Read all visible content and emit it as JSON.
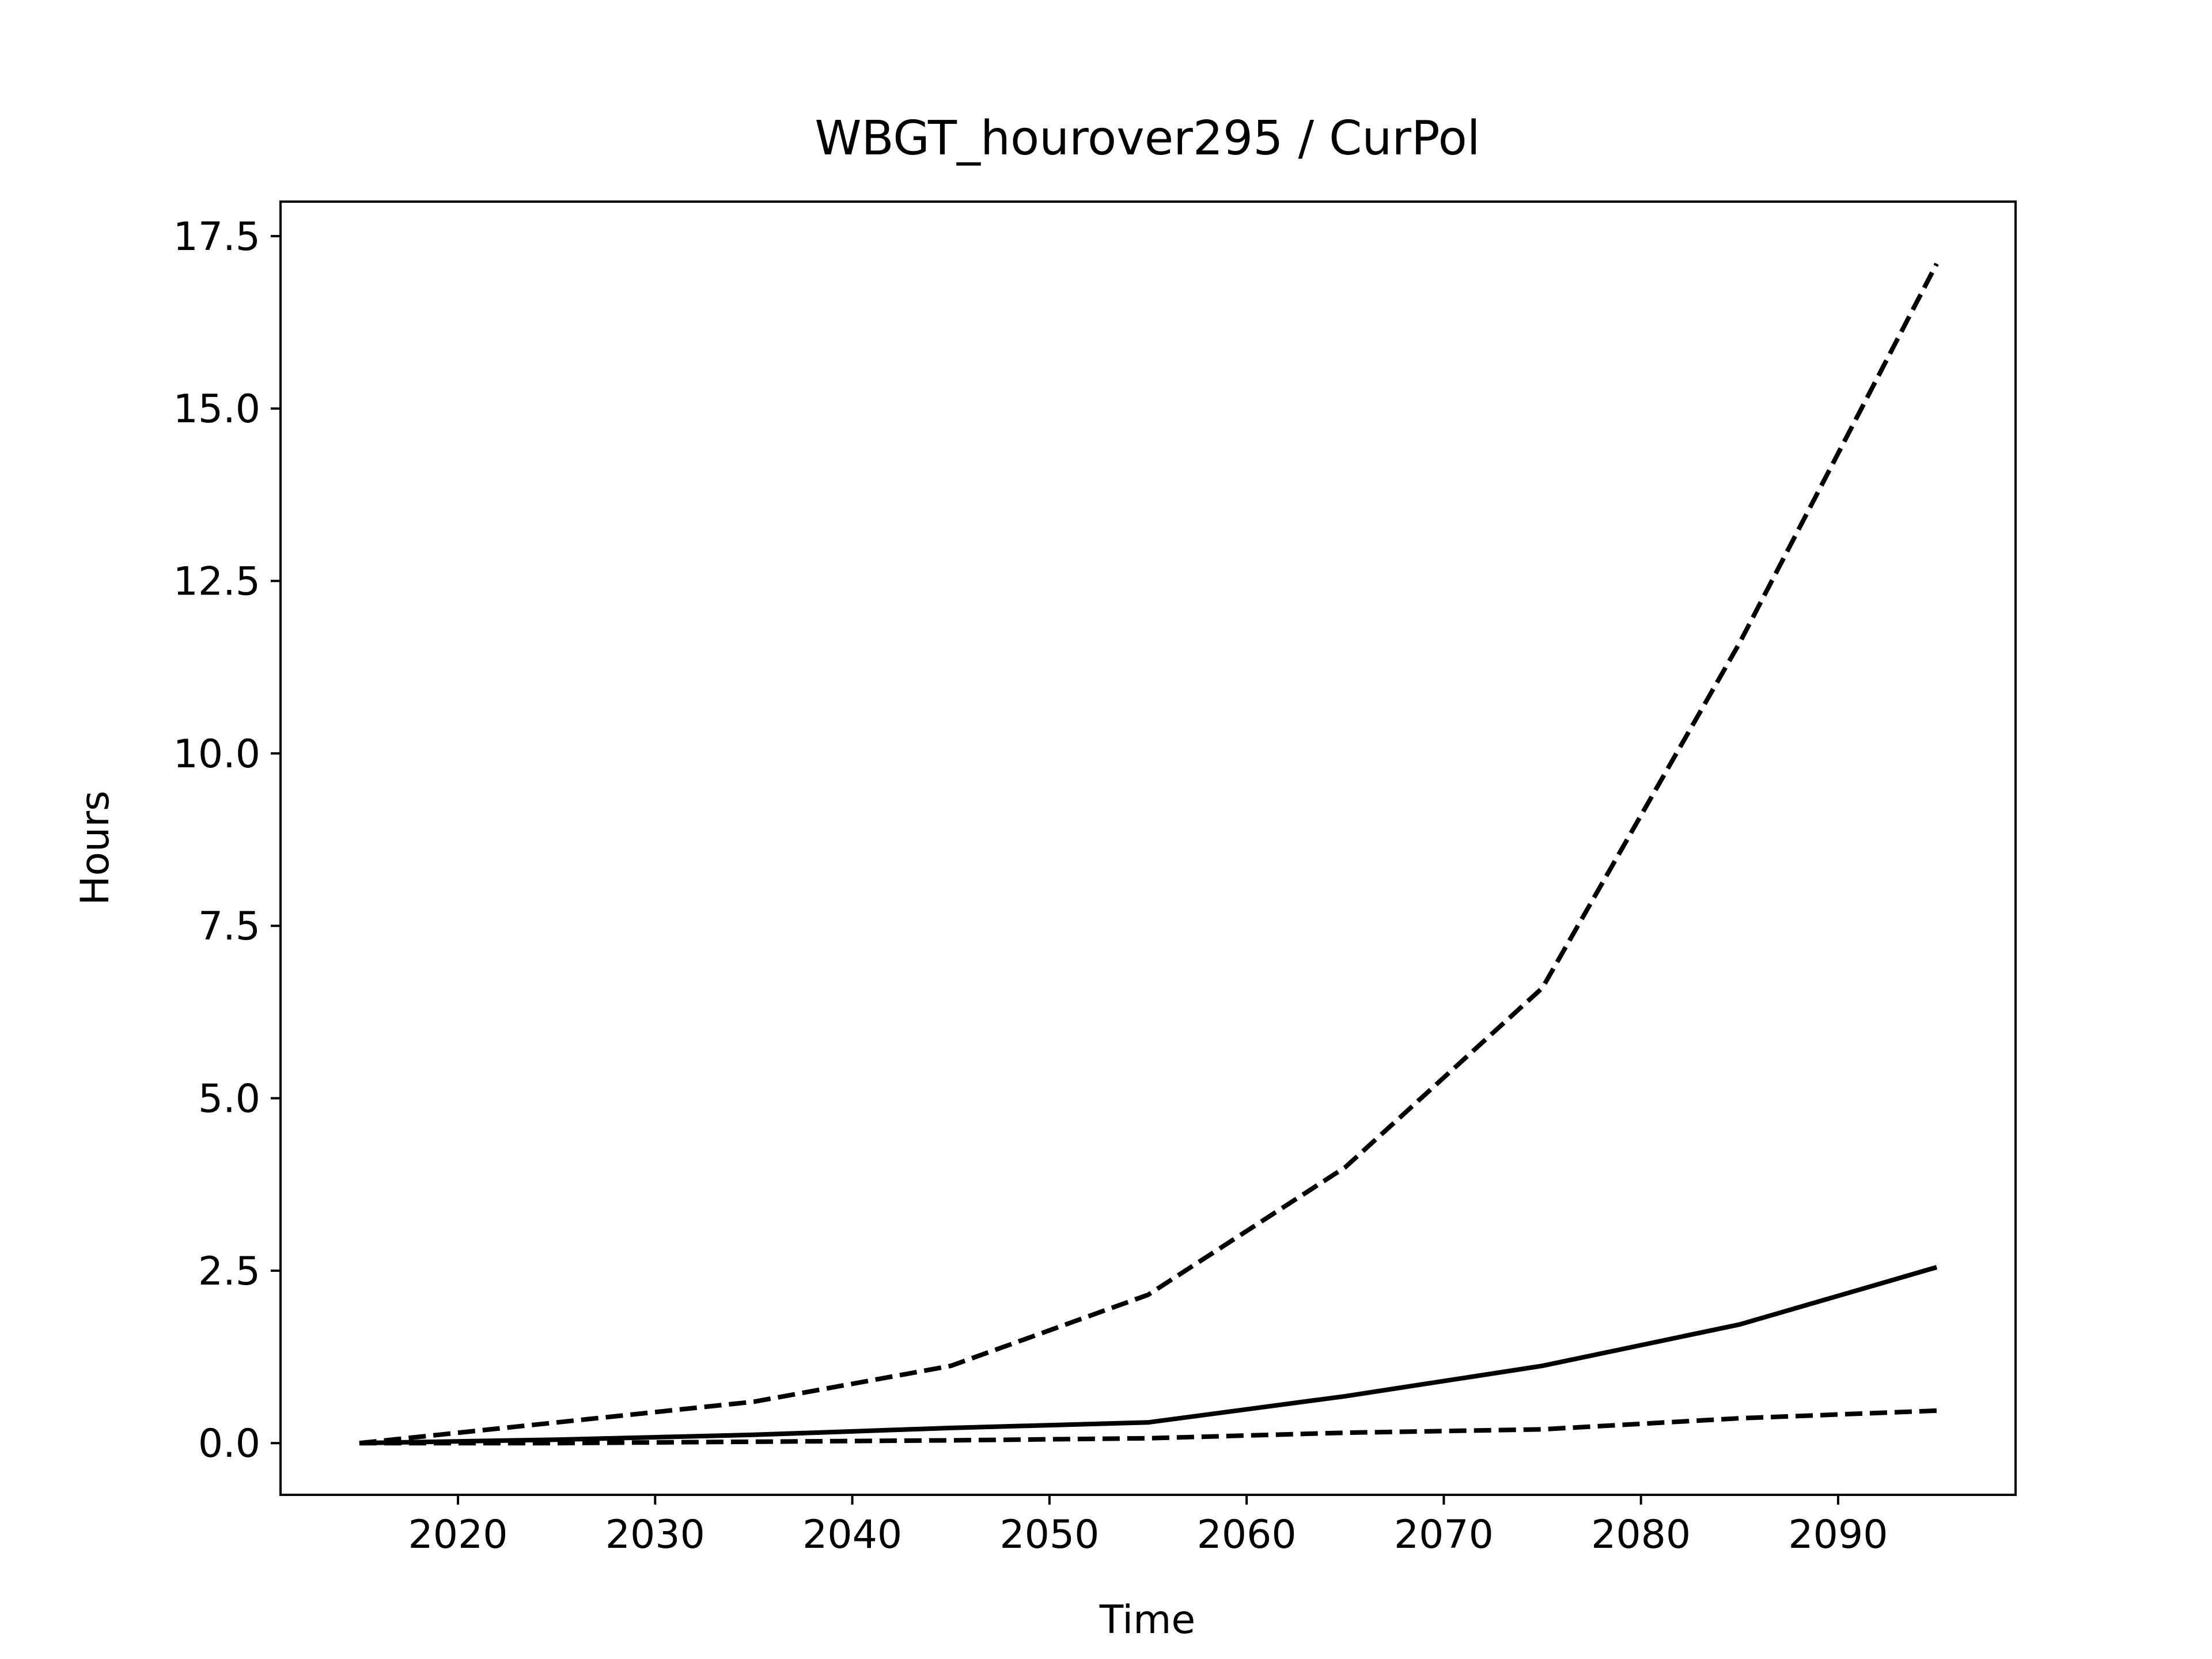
{
  "chart_data": {
    "type": "line",
    "title": "WBGT_hourover295 / CurPol",
    "xlabel": "Time",
    "ylabel": "Hours",
    "xlim": [
      2011,
      2099
    ],
    "ylim": [
      -0.75,
      18.0
    ],
    "xticks": [
      2020,
      2030,
      2040,
      2050,
      2060,
      2070,
      2080,
      2090
    ],
    "yticks": [
      0.0,
      2.5,
      5.0,
      7.5,
      10.0,
      12.5,
      15.0,
      17.5
    ],
    "ytick_labels": [
      "0.0",
      "2.5",
      "5.0",
      "7.5",
      "10.0",
      "12.5",
      "15.0",
      "17.5"
    ],
    "grid": false,
    "legend": "none",
    "x": [
      2015,
      2025,
      2035,
      2045,
      2055,
      2065,
      2075,
      2085,
      2095
    ],
    "series": [
      {
        "style": "dashed",
        "color": "#000000",
        "values": [
          0.0,
          0.3,
          0.6,
          1.12,
          2.15,
          4.0,
          6.6,
          11.6,
          17.1
        ]
      },
      {
        "style": "solid",
        "color": "#000000",
        "values": [
          0.0,
          0.05,
          0.12,
          0.22,
          0.3,
          0.68,
          1.12,
          1.72,
          2.55
        ]
      },
      {
        "style": "dashed",
        "color": "#000000",
        "values": [
          0.0,
          0.0,
          0.02,
          0.04,
          0.07,
          0.15,
          0.2,
          0.36,
          0.47
        ]
      }
    ]
  }
}
